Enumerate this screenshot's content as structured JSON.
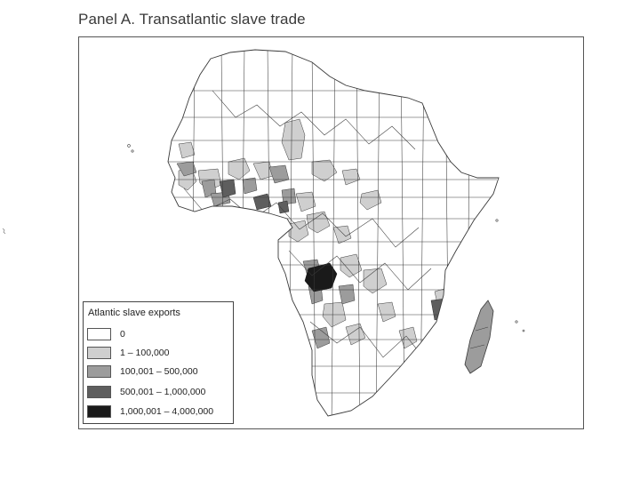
{
  "panel_title": "Panel A. Transatlantic slave trade",
  "legend": {
    "title": "Atlantic slave exports",
    "entries": [
      {
        "label": "0",
        "color": "#ffffff"
      },
      {
        "label": "1 – 100,000",
        "color": "#cfcfcf"
      },
      {
        "label": "100,001 – 500,000",
        "color": "#9c9c9c"
      },
      {
        "label": "500,001 – 1,000,000",
        "color": "#5e5e5e"
      },
      {
        "label": "1,000,001 – 4,000,000",
        "color": "#1a1a1a"
      }
    ]
  },
  "map": {
    "subject": "Africa",
    "border_color": "#3a3a3a"
  }
}
